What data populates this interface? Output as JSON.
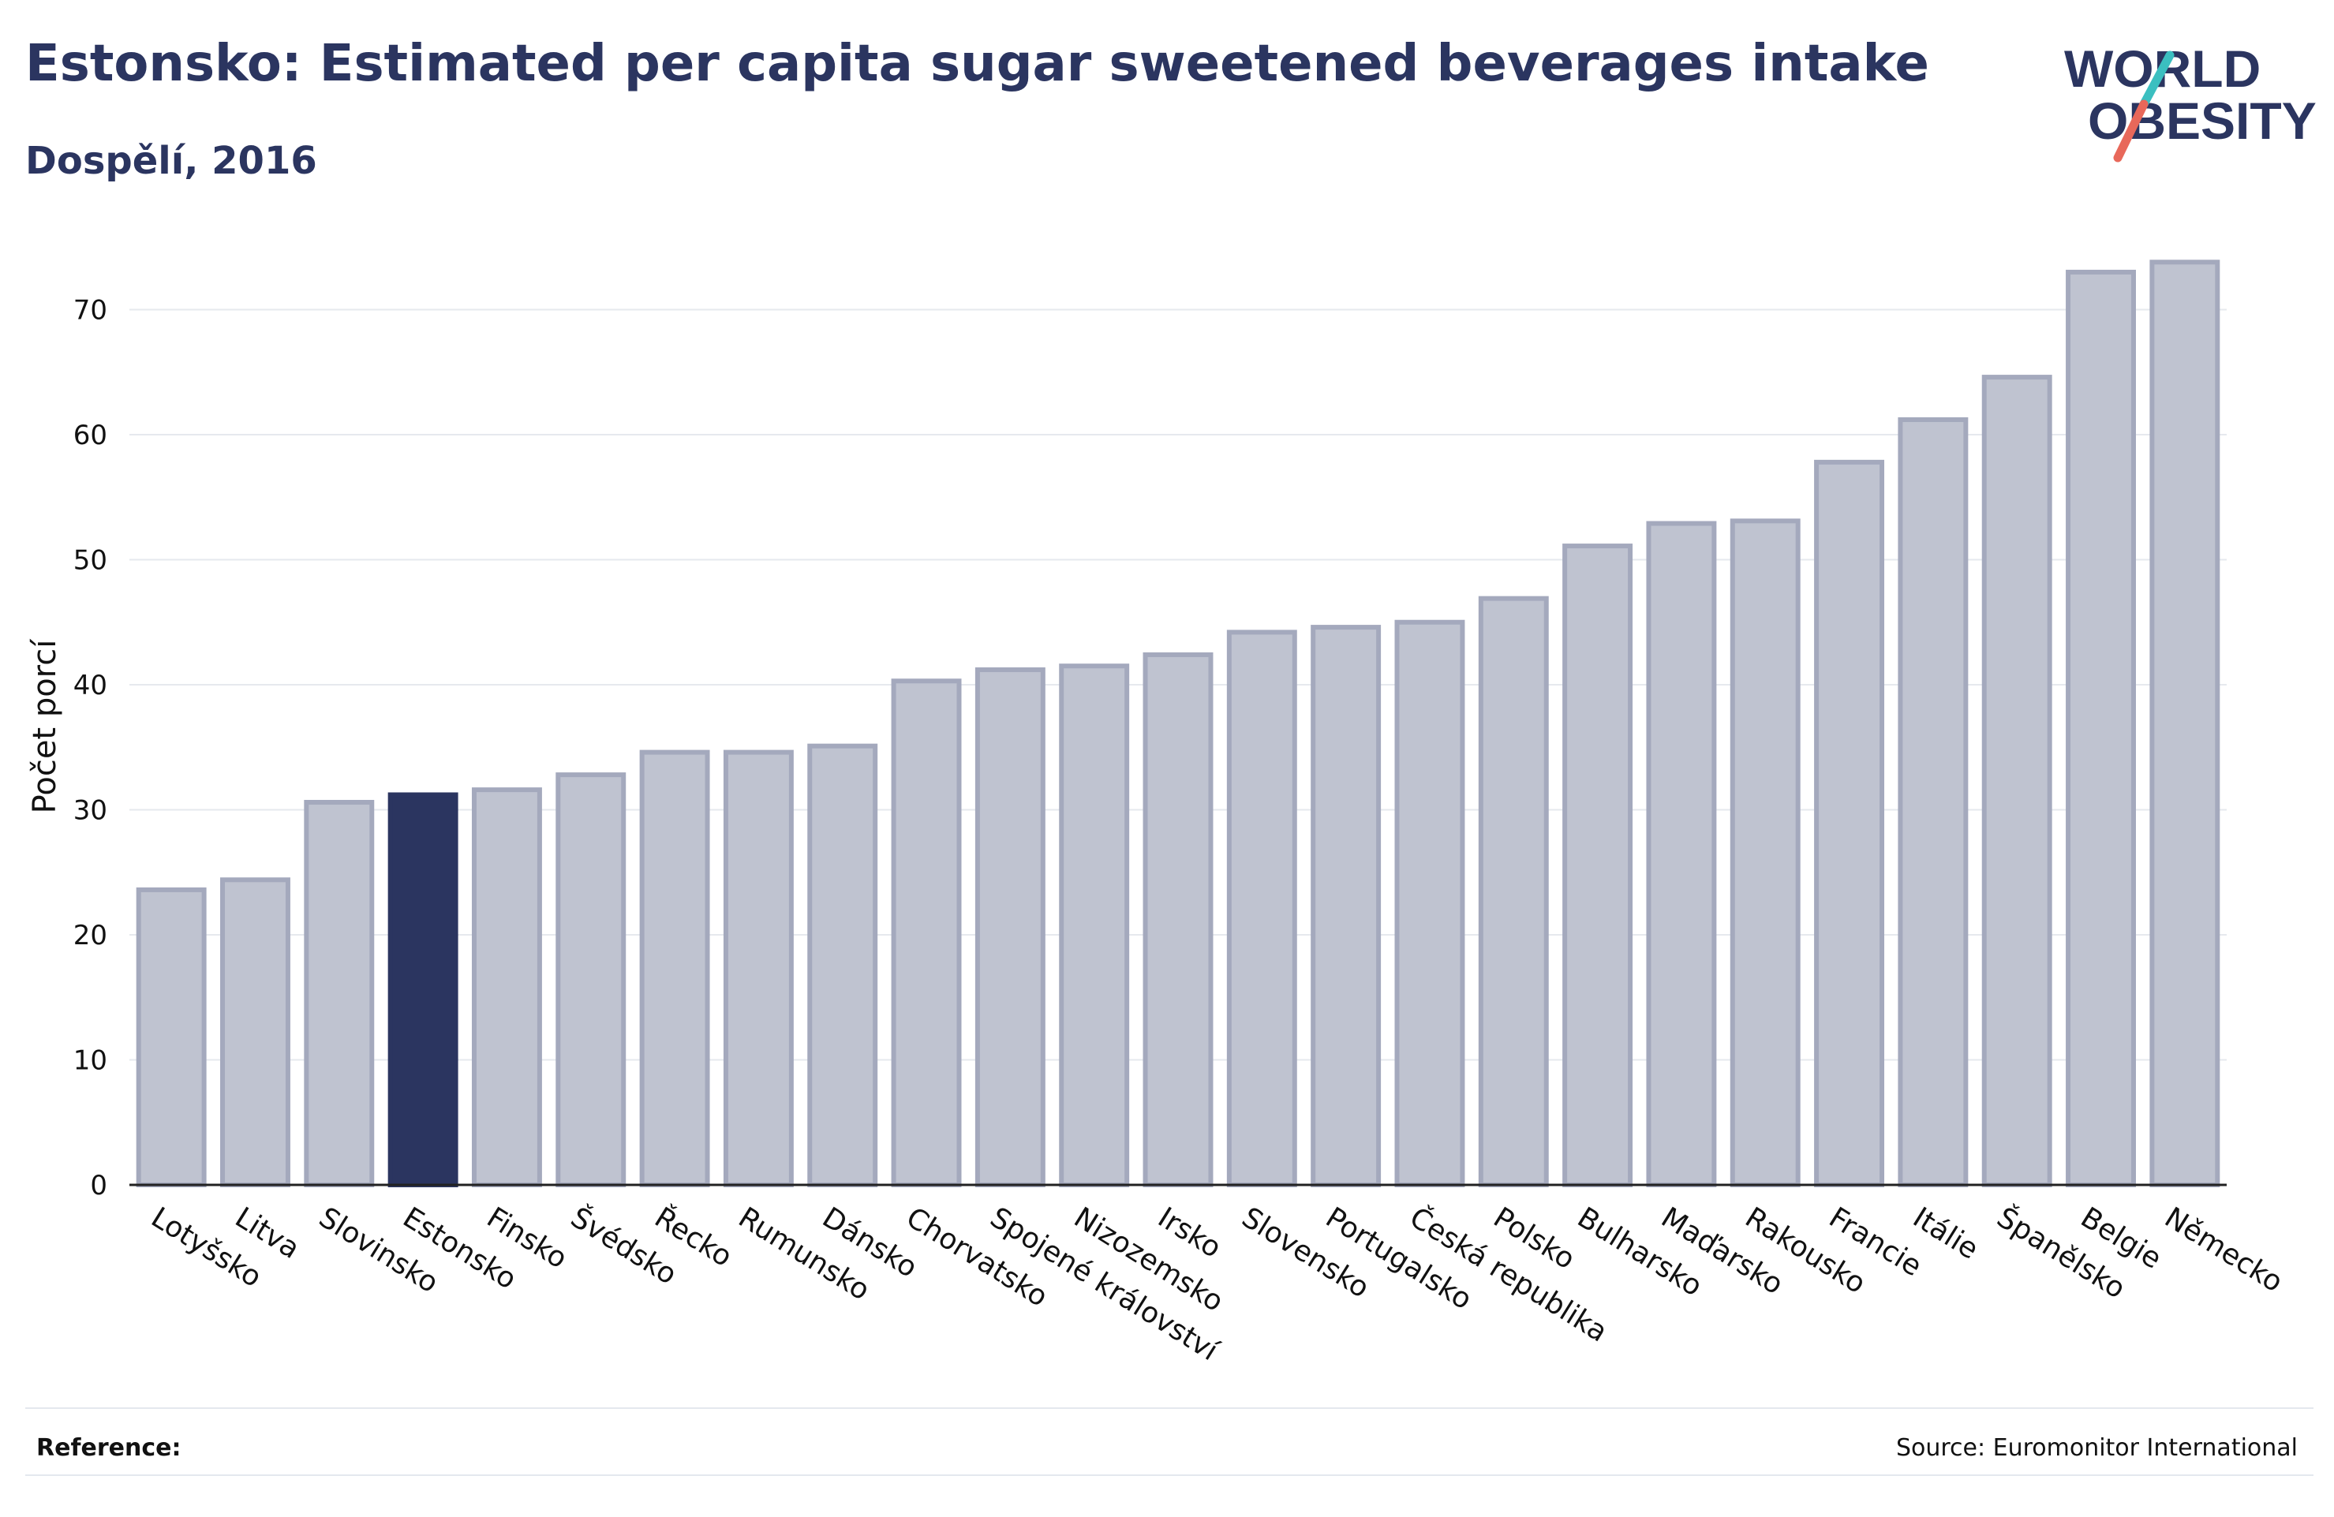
{
  "header": {
    "title": "Estonsko: Estimated per capita sugar sweetened beverages intake",
    "subtitle": "Dospělí, 2016"
  },
  "logo": {
    "line1": "WORLD",
    "line2": "OBESITY"
  },
  "footer": {
    "reference_label": "Reference:",
    "source": "Source: Euromonitor International"
  },
  "colors": {
    "title": "#2b3560",
    "bar_fill": "#bfc3d0",
    "bar_stroke": "#a4a9bd",
    "highlight": "#2b3560",
    "logo_teal": "#3bbfc0",
    "logo_red": "#e8685a"
  },
  "chart_data": {
    "type": "bar",
    "title": "Estonsko: Estimated per capita sugar sweetened beverages intake",
    "subtitle": "Dospělí, 2016",
    "xlabel": "",
    "ylabel": "Počet porcí",
    "ylim": [
      0,
      75
    ],
    "yticks": [
      0,
      10,
      20,
      30,
      40,
      50,
      60,
      70
    ],
    "grid": true,
    "highlight": "Estonsko",
    "categories": [
      "Lotyšsko",
      "Litva",
      "Slovinsko",
      "Estonsko",
      "Finsko",
      "Švédsko",
      "Řecko",
      "Rumunsko",
      "Dánsko",
      "Chorvatsko",
      "Spojené království",
      "Nizozemsko",
      "Irsko",
      "Slovensko",
      "Portugalsko",
      "Česká republika",
      "Polsko",
      "Bulharsko",
      "Maďarsko",
      "Rakousko",
      "Francie",
      "Itálie",
      "Španělsko",
      "Belgie",
      "Německo"
    ],
    "values": [
      23.6,
      24.4,
      30.6,
      31.2,
      31.6,
      32.8,
      34.6,
      34.6,
      35.1,
      40.3,
      41.2,
      41.5,
      42.4,
      44.2,
      44.6,
      45.0,
      46.9,
      51.1,
      52.9,
      53.1,
      57.8,
      61.2,
      64.6,
      73.0,
      73.8
    ]
  }
}
